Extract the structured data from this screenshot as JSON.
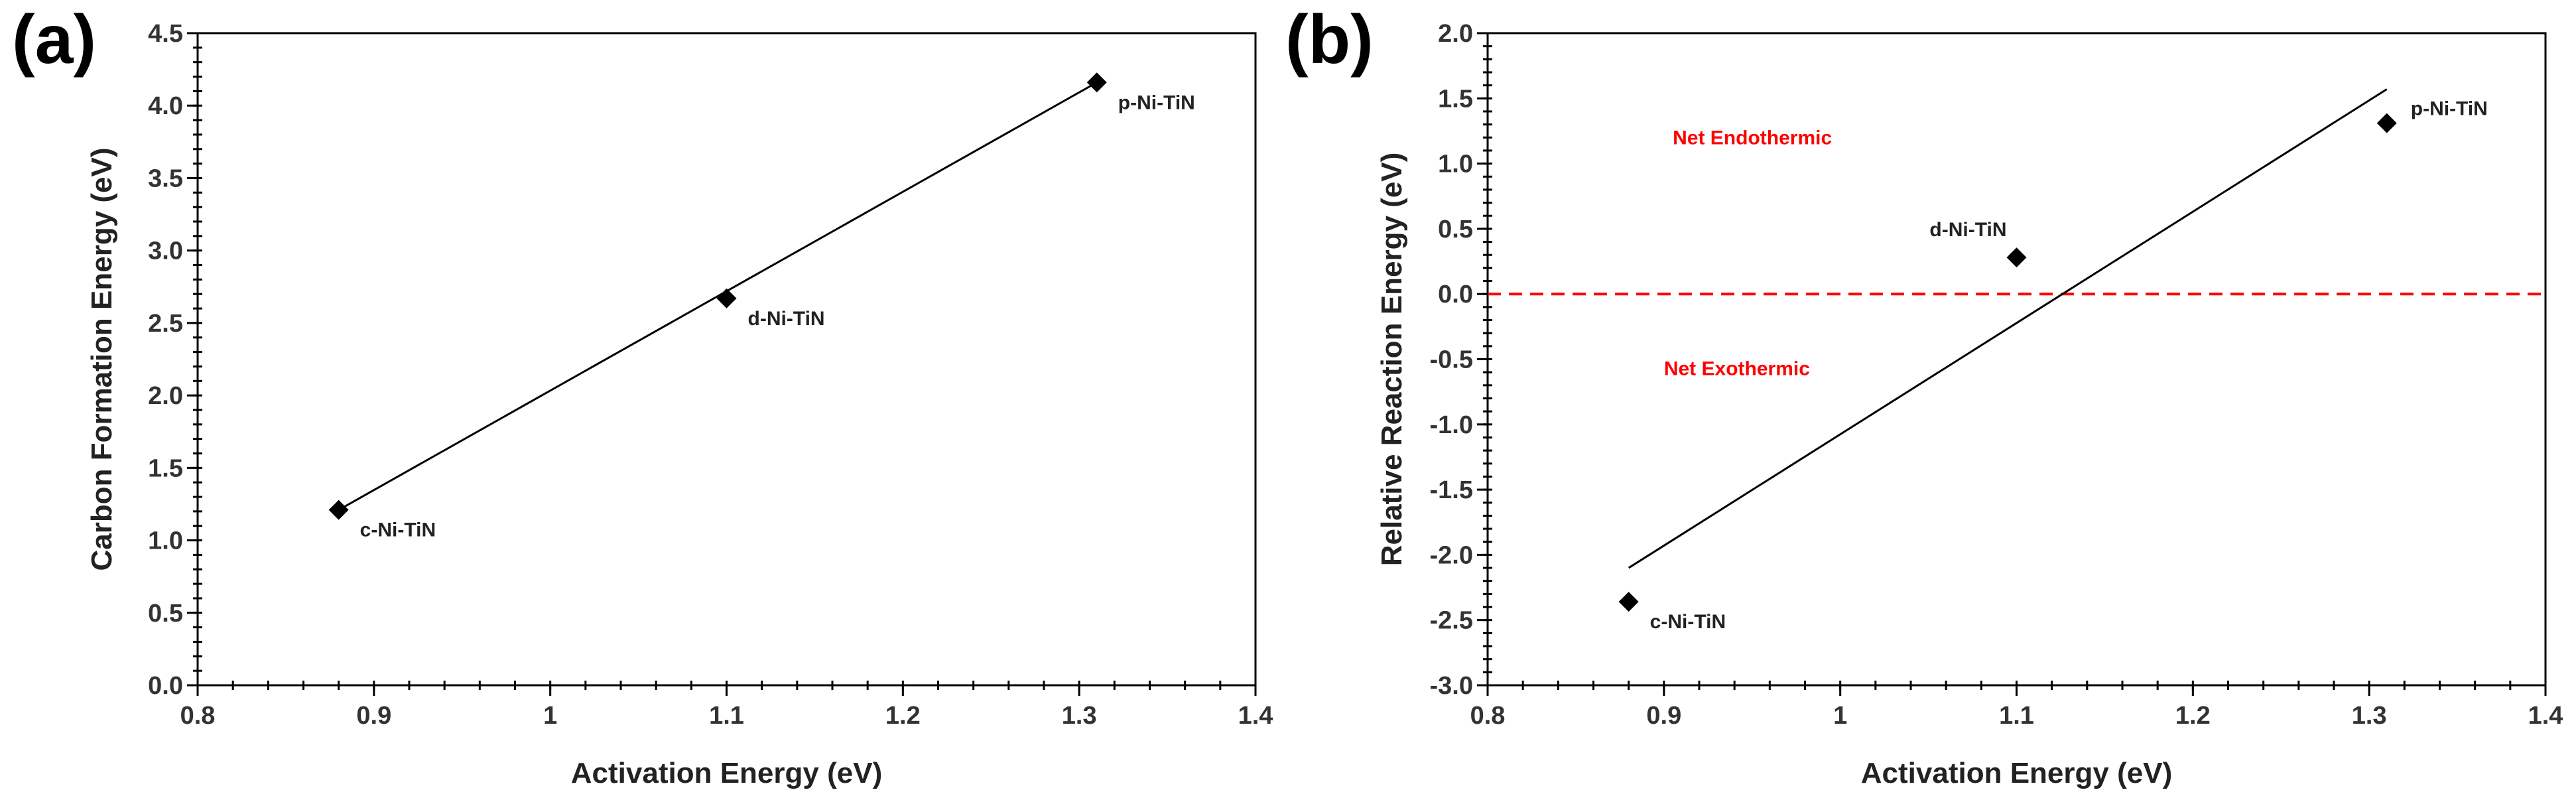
{
  "chart_data": [
    {
      "type": "scatter",
      "panel_label": "(a)",
      "xlabel": "Activation Energy (eV)",
      "ylabel": "Carbon Formation Energy (eV)",
      "xlim": [
        0.8,
        1.4
      ],
      "ylim": [
        0.0,
        4.5
      ],
      "xticks": [
        0.8,
        0.9,
        1.0,
        1.1,
        1.2,
        1.3,
        1.4
      ],
      "xtick_labels": [
        "0.8",
        "0.9",
        "1",
        "1.1",
        "1.2",
        "1.3",
        "1.4"
      ],
      "yticks": [
        0.0,
        0.5,
        1.0,
        1.5,
        2.0,
        2.5,
        3.0,
        3.5,
        4.0,
        4.5
      ],
      "ytick_labels": [
        "0.0",
        "0.5",
        "1.0",
        "1.5",
        "2.0",
        "2.5",
        "3.0",
        "3.5",
        "4.0",
        "4.5"
      ],
      "points": [
        {
          "label": "c-Ni-TiN",
          "x": 0.88,
          "y": 1.21,
          "label_pos": "below-right"
        },
        {
          "label": "d-Ni-TiN",
          "x": 1.1,
          "y": 2.67,
          "label_pos": "below-right"
        },
        {
          "label": "p-Ni-TiN",
          "x": 1.31,
          "y": 4.16,
          "label_pos": "below-right"
        }
      ],
      "trendline": {
        "x": [
          0.88,
          1.31
        ],
        "y": [
          1.21,
          4.16
        ]
      },
      "grid": false,
      "marker_color": "#000000"
    },
    {
      "type": "scatter",
      "panel_label": "(b)",
      "xlabel": "Activation Energy (eV)",
      "ylabel": "Relative Reaction Energy (eV)",
      "xlim": [
        0.8,
        1.4
      ],
      "ylim": [
        -3.0,
        2.0
      ],
      "xticks": [
        0.8,
        0.9,
        1.0,
        1.1,
        1.2,
        1.3,
        1.4
      ],
      "xtick_labels": [
        "0.8",
        "0.9",
        "1",
        "1.1",
        "1.2",
        "1.3",
        "1.4"
      ],
      "yticks": [
        -3.0,
        -2.5,
        -2.0,
        -1.5,
        -1.0,
        -0.5,
        0.0,
        0.5,
        1.0,
        1.5,
        2.0
      ],
      "ytick_labels": [
        "-3.0",
        "-2.5",
        "-2.0",
        "-1.5",
        "-1.0",
        "-0.5",
        "0.0",
        "0.5",
        "1.0",
        "1.5",
        "2.0"
      ],
      "points": [
        {
          "label": "c-Ni-TiN",
          "x": 0.88,
          "y": -2.36,
          "label_pos": "below-right"
        },
        {
          "label": "d-Ni-TiN",
          "x": 1.1,
          "y": 0.28,
          "label_pos": "above-left"
        },
        {
          "label": "p-Ni-TiN",
          "x": 1.31,
          "y": 1.31,
          "label_pos": "right"
        }
      ],
      "trendline": {
        "x": [
          0.88,
          1.31
        ],
        "y": [
          -2.1,
          1.57
        ]
      },
      "reference_line": {
        "y": 0.0,
        "color": "#ff0000",
        "style": "dashed"
      },
      "annotations": [
        {
          "text": "Net Endothermic",
          "x": 0.905,
          "y": 1.2,
          "color": "#ff0000"
        },
        {
          "text": "Net Exothermic",
          "x": 0.9,
          "y": -0.57,
          "color": "#ff0000"
        }
      ],
      "grid": false,
      "marker_color": "#000000"
    }
  ]
}
